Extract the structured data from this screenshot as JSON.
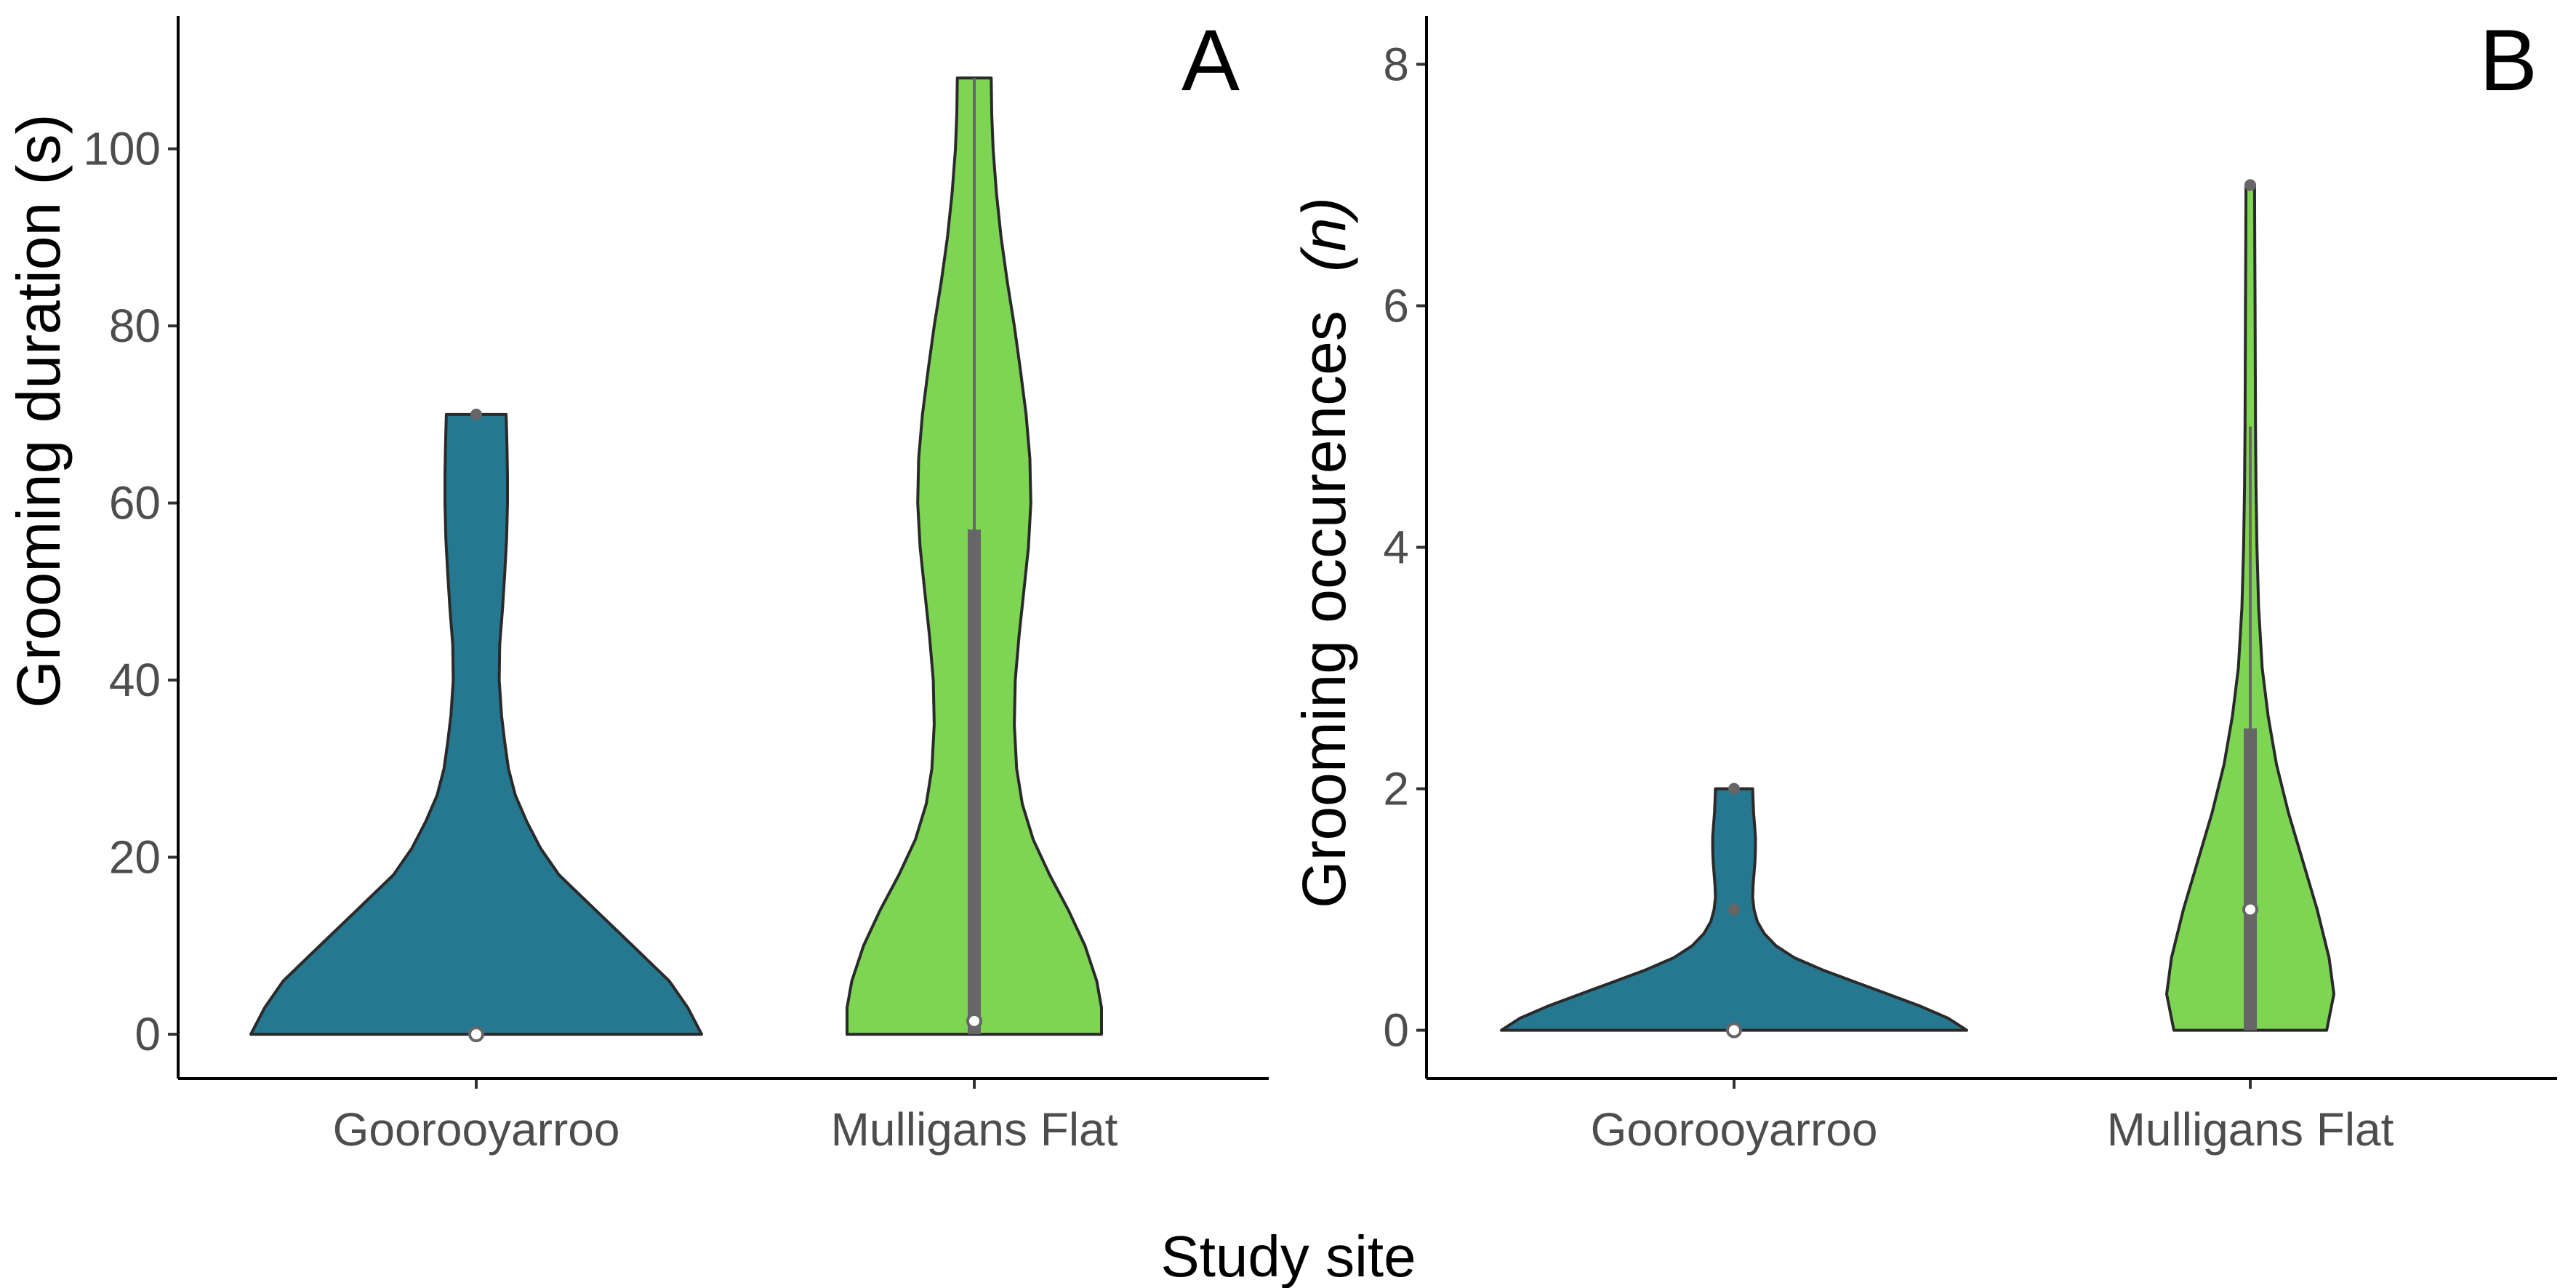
{
  "shared_xlabel": "Study site",
  "colors": {
    "gooroo": "#25788F",
    "mulligans": "#7ED453",
    "outline": "#2A2A2A",
    "box": "#666666",
    "axis": "#000000",
    "tick_text": "#4D4D4D"
  },
  "chart_data": [
    {
      "type": "violin",
      "panel": "A",
      "xlabel": "",
      "ylabel": "Grooming duration (s)",
      "ylim": [
        -5,
        115
      ],
      "yticks": [
        0,
        20,
        40,
        60,
        80,
        100
      ],
      "categories": [
        "Gooroo yarroo",
        "Mulligans Flat"
      ],
      "category_labels": [
        "Goorooyarroo",
        "Mulligans Flat"
      ],
      "grid": false,
      "groups": [
        {
          "category": "Goorooyarroo",
          "color": "#25788F",
          "min": 0,
          "q1": 0,
          "median": 0,
          "q3": 0,
          "max": 0,
          "outliers": [
            70
          ],
          "density": [
            [
              0,
              0.49
            ],
            [
              3,
              0.46
            ],
            [
              6,
              0.42
            ],
            [
              9,
              0.36
            ],
            [
              12,
              0.3
            ],
            [
              15,
              0.24
            ],
            [
              18,
              0.18
            ],
            [
              21,
              0.14
            ],
            [
              24,
              0.11
            ],
            [
              27,
              0.085
            ],
            [
              30,
              0.07
            ],
            [
              33,
              0.062
            ],
            [
              36,
              0.055
            ],
            [
              40,
              0.05
            ],
            [
              44,
              0.051
            ],
            [
              48,
              0.057
            ],
            [
              52,
              0.062
            ],
            [
              56,
              0.066
            ],
            [
              60,
              0.068
            ],
            [
              63,
              0.068
            ],
            [
              66,
              0.067
            ],
            [
              68,
              0.066
            ],
            [
              70,
              0.065
            ]
          ]
        },
        {
          "category": "Mulligans Flat",
          "color": "#7ED453",
          "min": 0,
          "q1": 0,
          "median": 1.5,
          "q3": 57,
          "max": 108,
          "outliers": [],
          "density": [
            [
              0,
              0.27
            ],
            [
              3,
              0.27
            ],
            [
              6,
              0.26
            ],
            [
              10,
              0.235
            ],
            [
              14,
              0.2
            ],
            [
              18,
              0.16
            ],
            [
              22,
              0.125
            ],
            [
              26,
              0.102
            ],
            [
              30,
              0.09
            ],
            [
              35,
              0.085
            ],
            [
              40,
              0.087
            ],
            [
              45,
              0.095
            ],
            [
              50,
              0.105
            ],
            [
              55,
              0.115
            ],
            [
              60,
              0.12
            ],
            [
              65,
              0.118
            ],
            [
              70,
              0.11
            ],
            [
              75,
              0.098
            ],
            [
              80,
              0.085
            ],
            [
              85,
              0.07
            ],
            [
              90,
              0.057
            ],
            [
              95,
              0.047
            ],
            [
              100,
              0.04
            ],
            [
              104,
              0.037
            ],
            [
              108,
              0.036
            ]
          ]
        }
      ]
    },
    {
      "type": "violin",
      "panel": "B",
      "xlabel": "",
      "ylabel_main": "Grooming occurences",
      "ylabel_italic": "(n)",
      "ylim": [
        -0.4,
        8.4
      ],
      "yticks": [
        0,
        2,
        4,
        6,
        8
      ],
      "categories": [
        "Goorooyarroo",
        "Mulligans Flat"
      ],
      "grid": false,
      "groups": [
        {
          "category": "Goorooyarroo",
          "color": "#25788F",
          "min": 0,
          "q1": 0,
          "median": 0,
          "q3": 0,
          "max": 0,
          "outliers": [
            1,
            2
          ],
          "density": [
            [
              0,
              0.5
            ],
            [
              0.1,
              0.46
            ],
            [
              0.2,
              0.4
            ],
            [
              0.3,
              0.33
            ],
            [
              0.4,
              0.26
            ],
            [
              0.5,
              0.19
            ],
            [
              0.6,
              0.13
            ],
            [
              0.7,
              0.09
            ],
            [
              0.8,
              0.065
            ],
            [
              0.9,
              0.05
            ],
            [
              1.0,
              0.043
            ],
            [
              1.1,
              0.04
            ],
            [
              1.2,
              0.041
            ],
            [
              1.3,
              0.043
            ],
            [
              1.4,
              0.045
            ],
            [
              1.5,
              0.046
            ],
            [
              1.6,
              0.046
            ],
            [
              1.7,
              0.044
            ],
            [
              1.8,
              0.042
            ],
            [
              1.9,
              0.041
            ],
            [
              2.0,
              0.04
            ]
          ]
        },
        {
          "category": "Mulligans Flat",
          "color": "#7ED453",
          "min": 0,
          "q1": 0,
          "median": 1,
          "q3": 2.5,
          "max": 5,
          "outliers": [
            7
          ],
          "density": [
            [
              0,
              0.32
            ],
            [
              0.3,
              0.35
            ],
            [
              0.6,
              0.33
            ],
            [
              1.0,
              0.28
            ],
            [
              1.4,
              0.22
            ],
            [
              1.8,
              0.16
            ],
            [
              2.2,
              0.11
            ],
            [
              2.6,
              0.075
            ],
            [
              3.0,
              0.05
            ],
            [
              3.5,
              0.035
            ],
            [
              4.0,
              0.028
            ],
            [
              4.5,
              0.024
            ],
            [
              5.0,
              0.022
            ],
            [
              5.5,
              0.021
            ],
            [
              6.0,
              0.02
            ],
            [
              6.5,
              0.019
            ],
            [
              7.0,
              0.018
            ]
          ]
        }
      ]
    }
  ]
}
